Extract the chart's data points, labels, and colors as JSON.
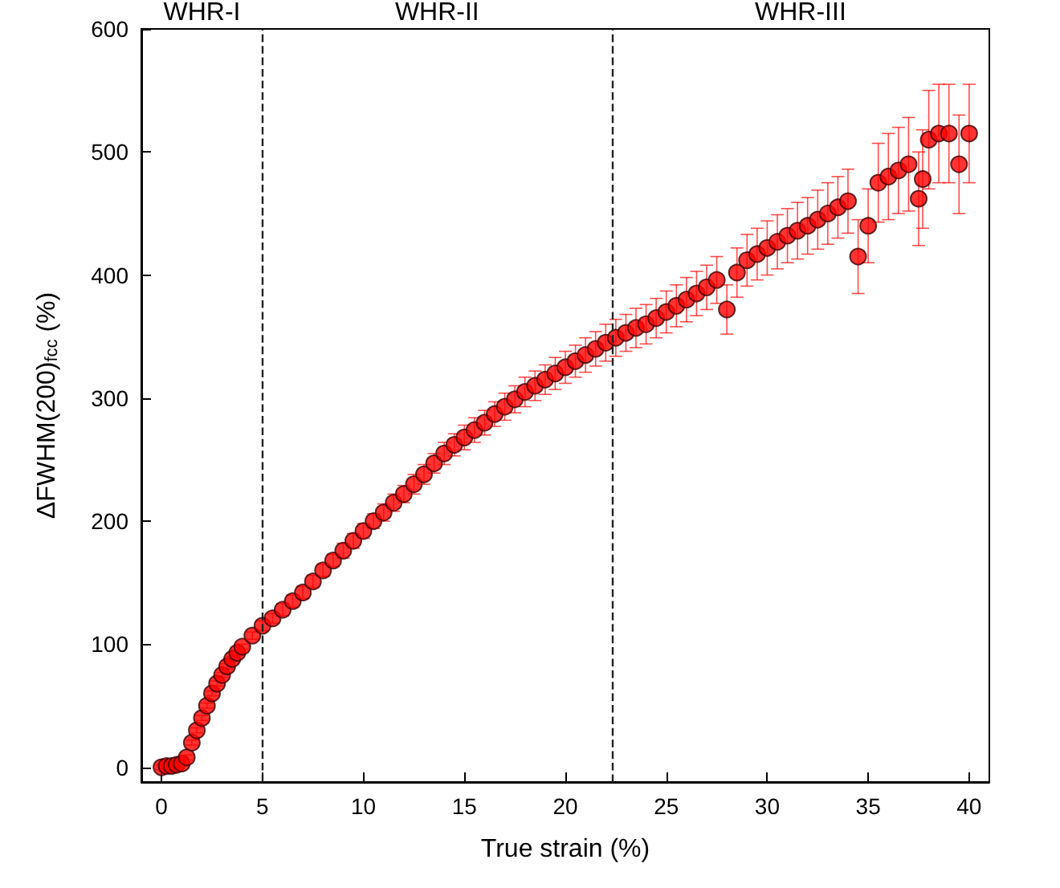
{
  "chart_data": {
    "type": "scatter",
    "xlabel": "True strain (%)",
    "ylabel": "ΔFWHM(200)$_{fcc}$ (%)",
    "annotations": [
      "WHR-I",
      "WHR-II",
      "WHR-III"
    ],
    "x": [
      0,
      0.25,
      0.5,
      0.75,
      1,
      1.25,
      1.5,
      1.75,
      2,
      2.25,
      2.5,
      2.75,
      3,
      3.25,
      3.5,
      3.75,
      4,
      4.5,
      5,
      5.5,
      6,
      6.5,
      7,
      7.5,
      8,
      8.5,
      9,
      9.5,
      10,
      10.5,
      11,
      11.5,
      12,
      12.5,
      13,
      13.5,
      14,
      14.5,
      15,
      15.5,
      16,
      16.5,
      17,
      17.5,
      18,
      18.5,
      19,
      19.5,
      20,
      20.5,
      21,
      21.5,
      22,
      22.5,
      23,
      23.5,
      24,
      24.5,
      25,
      25.5,
      26,
      26.5,
      27,
      27.5,
      28,
      28.5,
      29,
      29.5,
      30,
      30.5,
      31,
      31.5,
      32,
      32.5,
      33,
      33.5,
      34,
      34.5,
      35,
      35.5,
      36,
      36.5,
      37,
      37.5,
      37.7,
      38,
      38.5,
      39,
      39.5,
      40
    ],
    "series": [
      {
        "color": "#ff0000",
        "values": [
          0,
          1,
          1,
          2,
          3,
          8,
          20,
          30,
          40,
          50,
          60,
          68,
          75,
          82,
          88,
          93,
          98,
          107,
          115,
          121,
          128,
          135,
          142,
          151,
          160,
          168,
          176,
          184,
          192,
          200,
          207,
          215,
          222,
          230,
          238,
          247,
          255,
          262,
          268,
          274,
          280,
          287,
          293,
          299,
          305,
          310,
          315,
          320,
          325,
          330,
          335,
          340,
          345,
          349,
          353,
          357,
          360,
          365,
          370,
          375,
          380,
          385,
          390,
          396,
          372,
          402,
          412,
          417,
          422,
          427,
          432,
          436,
          440,
          445,
          450,
          455,
          460,
          415,
          440,
          475,
          480,
          485,
          490,
          462,
          478,
          510,
          515,
          515,
          490,
          515
        ],
        "errors": [
          2,
          2,
          2,
          2,
          2,
          2,
          2,
          2,
          2,
          2,
          2,
          2,
          2,
          2,
          2,
          2,
          2,
          3,
          4,
          4,
          5,
          5,
          5,
          5,
          5,
          5,
          6,
          6,
          6,
          6,
          7,
          7,
          7,
          8,
          8,
          8,
          9,
          9,
          10,
          10,
          10,
          10,
          11,
          11,
          12,
          12,
          12,
          13,
          13,
          13,
          14,
          14,
          15,
          15,
          15,
          16,
          16,
          16,
          17,
          17,
          18,
          18,
          18,
          19,
          20,
          20,
          21,
          21,
          22,
          22,
          22,
          23,
          23,
          24,
          25,
          25,
          26,
          30,
          30,
          32,
          35,
          35,
          38,
          38,
          40,
          40,
          40,
          40,
          40,
          40
        ]
      }
    ],
    "xlim": [
      -1,
      41
    ],
    "ylim": [
      -12,
      600
    ],
    "xticks": [
      0,
      5,
      10,
      15,
      20,
      25,
      30,
      35,
      40
    ],
    "yticks": [
      0,
      100,
      200,
      300,
      400,
      500,
      600
    ],
    "ref_lines": [
      {
        "axis": "x",
        "value": 5,
        "color": "#222222",
        "line_style": "dashed"
      },
      {
        "axis": "x",
        "value": 22.3,
        "color": "#222222",
        "line_style": "dashed"
      }
    ],
    "marker": "circle"
  }
}
